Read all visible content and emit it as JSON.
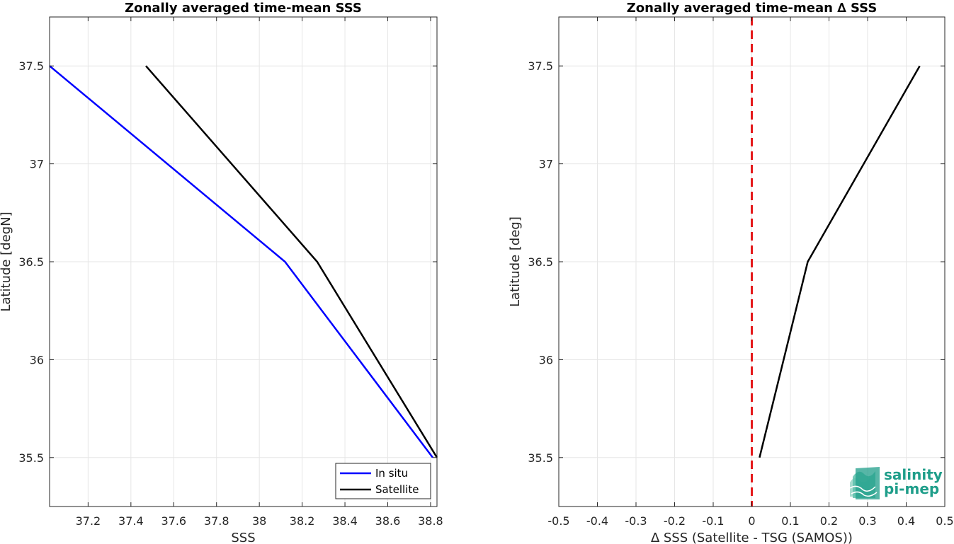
{
  "chart_data": [
    {
      "type": "line",
      "title": "Zonally averaged time-mean SSS",
      "xlabel": "SSS",
      "ylabel": "Latitude [degN]",
      "xlim": [
        37.02,
        38.83
      ],
      "ylim": [
        35.25,
        37.75
      ],
      "xticks": [
        37.2,
        37.4,
        37.6,
        37.8,
        38,
        38.2,
        38.4,
        38.6,
        38.8
      ],
      "xtick_labels": [
        "37.2",
        "37.4",
        "37.6",
        "37.8",
        "38",
        "38.2",
        "38.4",
        "38.6",
        "38.8"
      ],
      "yticks": [
        35.5,
        36,
        36.5,
        37,
        37.5
      ],
      "ytick_labels": [
        "35.5",
        "36",
        "36.5",
        "37",
        "37.5"
      ],
      "grid": true,
      "legend_position": "bottom-right",
      "series": [
        {
          "name": "In situ",
          "color": "#0000ff",
          "x": [
            38.81,
            38.12,
            37.02
          ],
          "y": [
            35.5,
            36.5,
            37.5
          ]
        },
        {
          "name": "Satellite",
          "color": "#000000",
          "x": [
            38.83,
            38.27,
            37.47
          ],
          "y": [
            35.5,
            36.5,
            37.5
          ]
        }
      ]
    },
    {
      "type": "line",
      "title": "Zonally averaged time-mean ∆ SSS",
      "xlabel": "∆ SSS (Satellite - TSG (SAMOS))",
      "ylabel": "Latitude [deg]",
      "xlim": [
        -0.5,
        0.5
      ],
      "ylim": [
        35.25,
        37.75
      ],
      "xticks": [
        -0.5,
        -0.4,
        -0.3,
        -0.2,
        -0.1,
        0,
        0.1,
        0.2,
        0.3,
        0.4,
        0.5
      ],
      "xtick_labels": [
        "-0.5",
        "-0.4",
        "-0.3",
        "-0.2",
        "-0.1",
        "0",
        "0.1",
        "0.2",
        "0.3",
        "0.4",
        "0.5"
      ],
      "yticks": [
        35.5,
        36,
        36.5,
        37,
        37.5
      ],
      "ytick_labels": [
        "35.5",
        "36",
        "36.5",
        "37",
        "37.5"
      ],
      "grid": true,
      "reference_line": {
        "x": 0,
        "color": "#e41a1c",
        "style": "dashed"
      },
      "series": [
        {
          "color": "#000000",
          "x": [
            0.02,
            0.145,
            0.435
          ],
          "y": [
            35.5,
            36.5,
            37.5
          ]
        }
      ]
    }
  ],
  "logo": {
    "line1": "salinity",
    "line2": "pi-mep",
    "color": "#1f9e8a"
  }
}
